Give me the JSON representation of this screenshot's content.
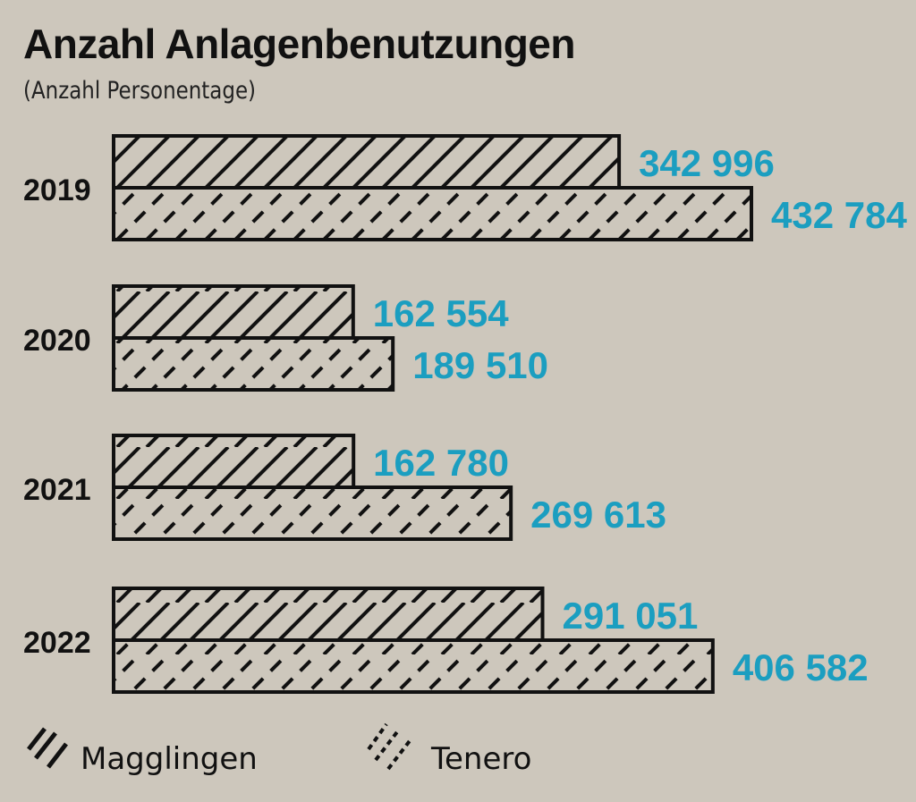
{
  "chart_data": {
    "type": "bar",
    "orientation": "horizontal",
    "title": "Anzahl Anlagenbenutzungen",
    "subtitle": "(Anzahl Personentage)",
    "categories": [
      "2019",
      "2020",
      "2021",
      "2022"
    ],
    "series": [
      {
        "name": "Magglingen",
        "pattern": "solid-hatch",
        "values": [
          342996,
          162554,
          162780,
          291051
        ],
        "labels": [
          "342 996",
          "162 554",
          "162 780",
          "291 051"
        ]
      },
      {
        "name": "Tenero",
        "pattern": "dashed-hatch",
        "values": [
          432784,
          189510,
          269613,
          406582
        ],
        "labels": [
          "432 784",
          "189 510",
          "269 613",
          "406 582"
        ]
      }
    ],
    "xlim": [
      0,
      432784
    ],
    "grid": false,
    "legend": "bottom-left",
    "colors": {
      "background": "#cdc7bc",
      "value_label": "#1b9ec0",
      "outline": "#111111"
    }
  }
}
